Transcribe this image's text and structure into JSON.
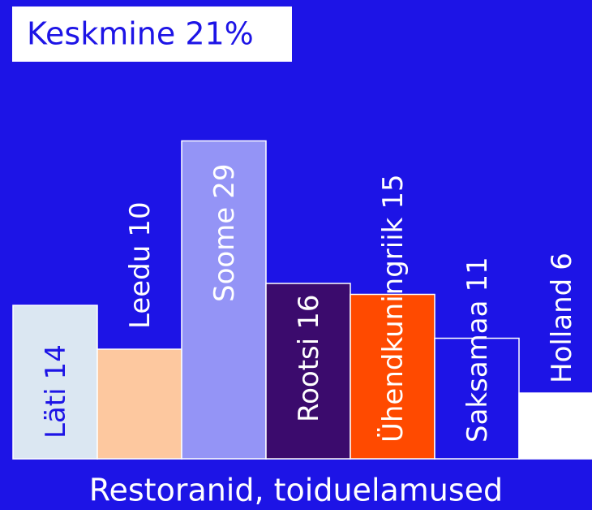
{
  "chart_data": {
    "type": "bar",
    "title": "Keskmine 21%",
    "xlabel": "Restoranid, toiduelamused",
    "categories": [
      "Läti",
      "Leedu",
      "Soome",
      "Rootsi",
      "Ühendkuningriik",
      "Saksamaa",
      "Holland"
    ],
    "values": [
      14,
      10,
      29,
      16,
      15,
      11,
      6
    ],
    "colors": [
      "#dbe7f2",
      "#fdc89f",
      "#9494f6",
      "#3b0b6d",
      "#ff4a00",
      "#1d14e6",
      "#ffffff"
    ],
    "label_colors": [
      "#1d14e6",
      "#ffffff",
      "#ffffff",
      "#ffffff",
      "#ffffff",
      "#ffffff",
      "#ffffff"
    ]
  }
}
